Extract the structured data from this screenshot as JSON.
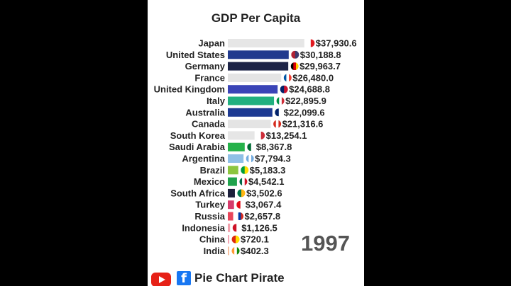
{
  "title": "GDP Per Capita",
  "year": "1997",
  "brand": "Pie Chart Pirate",
  "colors": {
    "background": "#ffffff",
    "outer": "#000000"
  },
  "chart_data": {
    "type": "bar",
    "orientation": "horizontal",
    "title": "GDP Per Capita",
    "categories": [
      "Japan",
      "Germany",
      "United States",
      "France",
      "United Kingdom",
      "Italy",
      "Australia",
      "Canada",
      "South Korea",
      "Saudi Arabia",
      "Argentina",
      "Brazil",
      "Mexico",
      "South Africa",
      "Turkey",
      "Russia",
      "Indonesia",
      "China",
      "India"
    ],
    "values": [
      37930.6,
      29963.7,
      30188.8,
      26480.0,
      24688.8,
      22895.9,
      22099.6,
      21316.6,
      13254.1,
      8367.8,
      7794.3,
      5183.3,
      4542.1,
      3502.6,
      3067.4,
      2657.8,
      1126.5,
      720.1,
      402.3
    ],
    "value_labels": [
      "$37,930.6",
      "$29,963.7",
      "$30,188.8",
      "$26,480.0",
      "$24,688.8",
      "$22,895.9",
      "$22,099.6",
      "$21,316.6",
      "$13,254.1",
      "$8,367.8",
      "$7,794.3",
      "$5,183.3",
      "$4,542.1",
      "$3,502.6",
      "$3,067.4",
      "$2,657.8",
      "$1,126.5",
      "$720.1",
      "$402.3"
    ],
    "colors": [
      "#e6e6e6",
      "#1d2447",
      "#213a8e",
      "#e4e4e4",
      "#3a44b7",
      "#21b07f",
      "#1d3a92",
      "#e4e4e4",
      "#e6e6e6",
      "#25b24a",
      "#8fc0e6",
      "#8cc63f",
      "#1fa24c",
      "#1b1f3a",
      "#d63a6a",
      "#e8455a",
      "#f2a1ad",
      "#f4a6b4",
      "#f6c0a0"
    ],
    "flag_icons": [
      "japan-flag-icon",
      "germany-flag-icon",
      "usa-flag-icon",
      "france-flag-icon",
      "uk-flag-icon",
      "italy-flag-icon",
      "australia-flag-icon",
      "canada-flag-icon",
      "south-korea-flag-icon",
      "saudi-arabia-flag-icon",
      "argentina-flag-icon",
      "brazil-flag-icon",
      "mexico-flag-icon",
      "south-africa-flag-icon",
      "turkey-flag-icon",
      "russia-flag-icon",
      "indonesia-flag-icon",
      "china-flag-icon",
      "india-flag-icon"
    ],
    "rank_order": [
      0,
      2,
      1,
      3,
      4,
      5,
      6,
      7,
      8,
      9,
      10,
      11,
      12,
      13,
      14,
      15,
      16,
      17,
      18
    ],
    "xlim": [
      0,
      38000
    ],
    "grid": false,
    "legend": "none"
  }
}
